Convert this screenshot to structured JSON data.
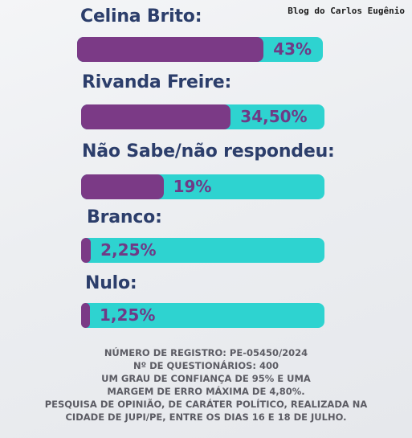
{
  "watermark": "Blog do Carlos Eugênio",
  "colors": {
    "fill": "#7b3a86",
    "track": "#2ed3d0",
    "label": "#2c3e6b",
    "value_text": "#6f3a86"
  },
  "chart_data": {
    "type": "bar",
    "orientation": "horizontal",
    "categories": [
      "Celina Brito:",
      "Rivanda Freire:",
      "Não Sabe/não respondeu:",
      "Branco:",
      "Nulo:"
    ],
    "values": [
      43,
      34.5,
      19,
      2.25,
      1.25
    ],
    "value_labels": [
      "43%",
      "34,50%",
      "19%",
      "2,25%",
      "1,25%"
    ],
    "xlim": [
      0,
      100
    ],
    "grid": false,
    "legend": "none"
  },
  "footer": {
    "lines": [
      "NÚMERO DE REGISTRO: PE-05450/2024",
      "Nº DE QUESTIONÁRIOS: 400",
      "UM GRAU DE CONFIANÇA DE 95% E UMA",
      "MARGEM DE ERRO MÁXIMA DE 4,80%.",
      "PESQUISA DE OPINIÃO, DE CARÁTER POLÍTICO, REALIZADA NA",
      "CIDADE DE JUPI/PE, ENTRE OS DIAS 16 E 18 DE JULHO."
    ]
  }
}
